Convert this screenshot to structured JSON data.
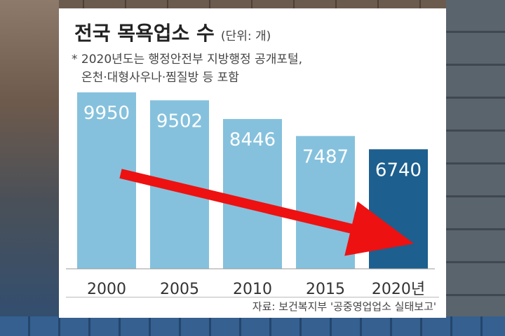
{
  "title": "전국 목욕업소 수",
  "unit": "(단위: 개)",
  "note_line1": "* 2020년도는 행정안전부 지방행정 공개포털,",
  "note_line2": "온천·대형사우나·찜질방 등 포함",
  "source": "자료: 보건복지부 '공중영업업소 실태보고'",
  "colors": {
    "bar": "#85c1dd",
    "bar_highlight": "#1d5f8e",
    "arrow": "#ee1111",
    "axis": "#999999"
  },
  "chart_data": {
    "type": "bar",
    "categories": [
      "2000",
      "2005",
      "2010",
      "2015",
      "2020년"
    ],
    "values": [
      9950,
      9502,
      8446,
      7487,
      6740
    ],
    "highlight_index": 4,
    "ylim": [
      0,
      10500
    ],
    "annotations": [
      {
        "type": "arrow",
        "from_category": "2000",
        "to_category": "2020년",
        "meaning": "downward trend"
      }
    ]
  }
}
